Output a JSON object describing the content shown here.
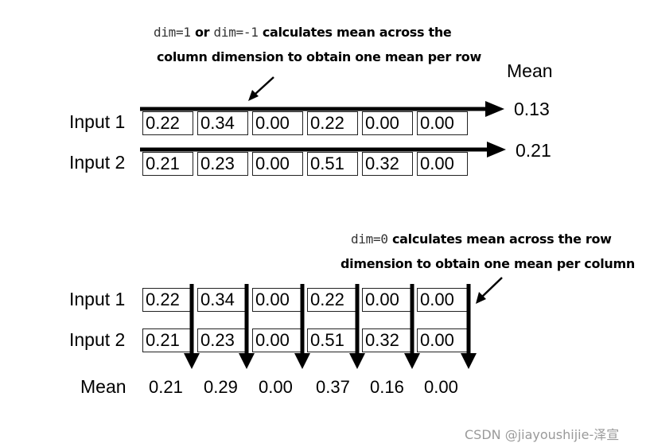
{
  "top": {
    "note_code1": "dim=1",
    "note_or": "or",
    "note_code2": "dim=-1",
    "note_line1_rest": "calculates mean across the",
    "note_line2": "column dimension to obtain one mean per row",
    "mean_header": "Mean",
    "rows": [
      {
        "label": "Input 1",
        "values": [
          "0.22",
          "0.34",
          "0.00",
          "0.22",
          "0.00",
          "0.00"
        ],
        "mean": "0.13"
      },
      {
        "label": "Input 2",
        "values": [
          "0.21",
          "0.23",
          "0.00",
          "0.51",
          "0.32",
          "0.00"
        ],
        "mean": "0.21"
      }
    ]
  },
  "bottom": {
    "note_code": "dim=0",
    "note_line1_rest": "calculates mean across the row",
    "note_line2": "dimension to obtain one mean per column",
    "mean_label": "Mean",
    "rows": [
      {
        "label": "Input 1",
        "values": [
          "0.22",
          "0.34",
          "0.00",
          "0.22",
          "0.00",
          "0.00"
        ]
      },
      {
        "label": "Input 2",
        "values": [
          "0.21",
          "0.23",
          "0.00",
          "0.51",
          "0.32",
          "0.00"
        ]
      }
    ],
    "means": [
      "0.21",
      "0.29",
      "0.00",
      "0.37",
      "0.16",
      "0.00"
    ]
  },
  "watermark": "CSDN @jiayoushijie-泽宣"
}
